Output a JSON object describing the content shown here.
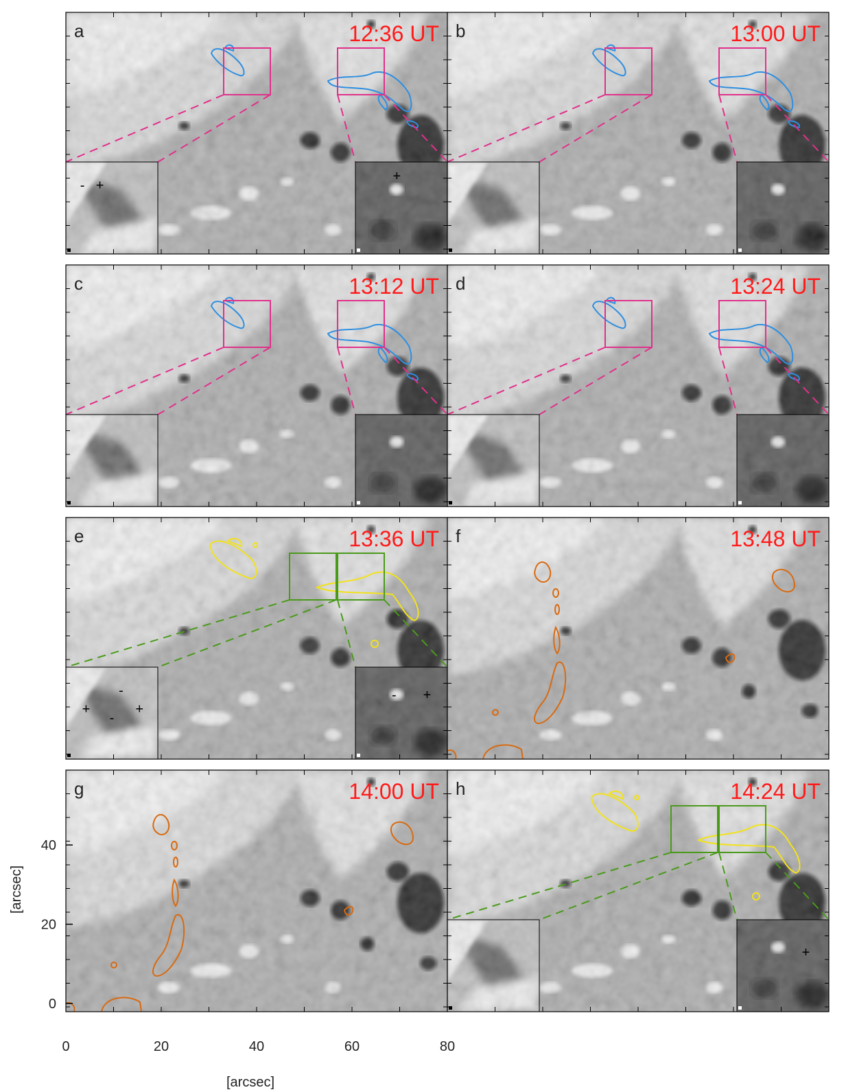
{
  "colors": {
    "magenta": "#e0308a",
    "blue": "#2f8fe0",
    "yellow": "#f2e21a",
    "green": "#4a9a1a",
    "orange": "#d86a10",
    "time_red": "#ff1a1a"
  },
  "panels": [
    {
      "letter": "a",
      "time": "12:36 UT",
      "box_style": "magenta",
      "contour": "blue",
      "signs": [
        {
          "inset": "left",
          "text": "-",
          "fx": 0.18,
          "fy": 0.25
        },
        {
          "inset": "left",
          "text": "+",
          "fx": 0.37,
          "fy": 0.25
        },
        {
          "inset": "right",
          "text": "+",
          "fx": 0.45,
          "fy": 0.15
        }
      ]
    },
    {
      "letter": "b",
      "time": "13:00 UT",
      "box_style": "magenta",
      "contour": "blue",
      "signs": []
    },
    {
      "letter": "c",
      "time": "13:12 UT",
      "box_style": "magenta",
      "contour": "blue",
      "signs": []
    },
    {
      "letter": "d",
      "time": "13:24 UT",
      "box_style": "magenta",
      "contour": "blue",
      "signs": []
    },
    {
      "letter": "e",
      "time": "13:36 UT",
      "box_style": "green",
      "contour": "yellow",
      "signs": [
        {
          "inset": "left",
          "text": "-",
          "fx": 0.6,
          "fy": 0.25
        },
        {
          "inset": "left",
          "text": "+",
          "fx": 0.22,
          "fy": 0.45
        },
        {
          "inset": "left",
          "text": "+",
          "fx": 0.8,
          "fy": 0.45
        },
        {
          "inset": "left",
          "text": "-",
          "fx": 0.5,
          "fy": 0.55
        },
        {
          "inset": "right",
          "text": "-",
          "fx": 0.42,
          "fy": 0.3
        },
        {
          "inset": "right",
          "text": "+",
          "fx": 0.78,
          "fy": 0.3
        }
      ]
    },
    {
      "letter": "f",
      "time": "13:48 UT",
      "box_style": "none",
      "contour": "orange",
      "signs": []
    },
    {
      "letter": "g",
      "time": "14:00 UT",
      "box_style": "none",
      "contour": "orange",
      "signs": []
    },
    {
      "letter": "h",
      "time": "14:24 UT",
      "box_style": "green",
      "contour": "yellow",
      "signs": [
        {
          "inset": "right",
          "text": "+",
          "fx": 0.75,
          "fy": 0.35
        }
      ]
    }
  ],
  "axes": {
    "x_ticks": [
      "0",
      "20",
      "40",
      "60",
      "80"
    ],
    "y_ticks": [
      "0",
      "20",
      "40"
    ],
    "xlabel": "[arcsec]",
    "ylabel": "[arcsec]",
    "xlim": [
      0,
      80
    ],
    "ylim": [
      0,
      50
    ]
  }
}
